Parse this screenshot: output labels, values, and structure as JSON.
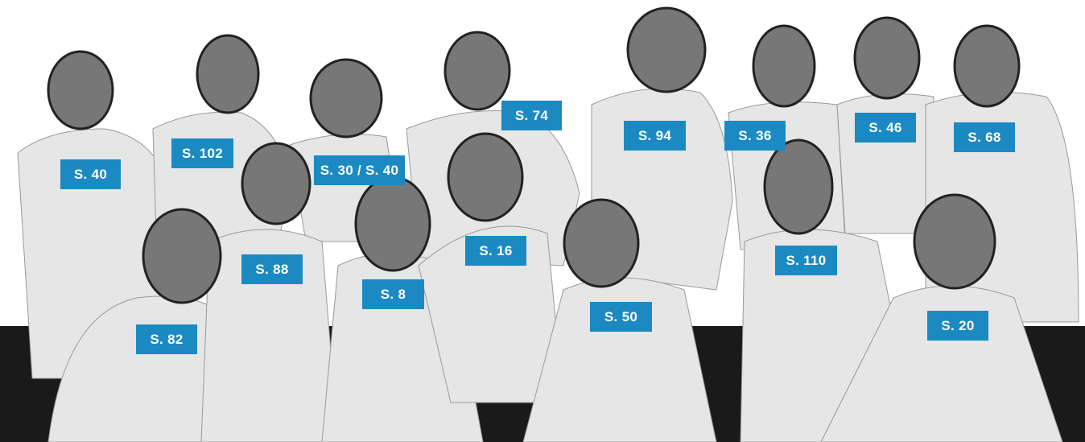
{
  "labels": [
    "S. 40",
    "S. 102",
    "S. 30 / S. 40",
    "S. 74",
    "S. 94",
    "S. 36",
    "S. 46",
    "S. 68",
    "S. 88",
    "S. 16",
    "S. 8",
    "S. 110",
    "S. 50",
    "S. 82",
    "S. 20"
  ]
}
